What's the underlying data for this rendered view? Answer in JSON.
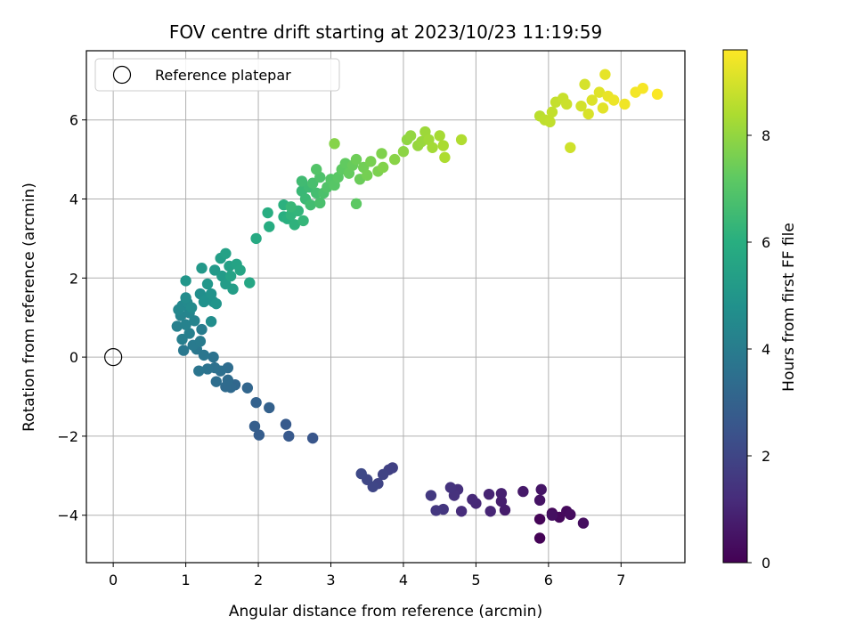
{
  "chart_data": {
    "type": "scatter",
    "title": "FOV centre drift starting at 2023/10/23 11:19:59",
    "xlabel": "Angular distance from reference (arcmin)",
    "ylabel": "Rotation from reference (arcmin)",
    "xlim": [
      -0.37,
      7.88
    ],
    "ylim": [
      -5.2,
      7.75
    ],
    "x_ticks": [
      "0",
      "1",
      "2",
      "3",
      "4",
      "5",
      "6",
      "7"
    ],
    "y_ticks": [
      "−4",
      "−2",
      "0",
      "2",
      "4",
      "6"
    ],
    "grid": true,
    "colormap": "viridis",
    "colorbar": {
      "label": "Hours from first FF file",
      "range": [
        0,
        9.6
      ],
      "ticks": [
        "0",
        "2",
        "4",
        "6",
        "8"
      ]
    },
    "legend": {
      "position": "upper-left",
      "entries": [
        {
          "label": "Reference platepar",
          "marker": "hollow-circle",
          "color": "#000000"
        }
      ]
    },
    "reference_point": {
      "x": 0,
      "y": 0
    },
    "points": [
      {
        "x": 5.88,
        "y": -4.58,
        "t": 0.05
      },
      {
        "x": 5.88,
        "y": -4.1,
        "t": 0.1
      },
      {
        "x": 6.05,
        "y": -3.95,
        "t": 0.15
      },
      {
        "x": 6.15,
        "y": -4.05,
        "t": 0.2
      },
      {
        "x": 6.25,
        "y": -3.9,
        "t": 0.25
      },
      {
        "x": 6.3,
        "y": -3.98,
        "t": 0.3
      },
      {
        "x": 6.48,
        "y": -4.2,
        "t": 0.35
      },
      {
        "x": 6.05,
        "y": -4.0,
        "t": 0.4
      },
      {
        "x": 5.88,
        "y": -3.62,
        "t": 0.5
      },
      {
        "x": 5.9,
        "y": -3.35,
        "t": 0.55
      },
      {
        "x": 5.65,
        "y": -3.4,
        "t": 0.65
      },
      {
        "x": 5.4,
        "y": -3.87,
        "t": 0.75
      },
      {
        "x": 5.35,
        "y": -3.65,
        "t": 0.8
      },
      {
        "x": 5.35,
        "y": -3.45,
        "t": 0.85
      },
      {
        "x": 5.18,
        "y": -3.47,
        "t": 0.95
      },
      {
        "x": 5.2,
        "y": -3.9,
        "t": 1.0
      },
      {
        "x": 5.0,
        "y": -3.7,
        "t": 1.05
      },
      {
        "x": 4.95,
        "y": -3.6,
        "t": 1.1
      },
      {
        "x": 4.8,
        "y": -3.9,
        "t": 1.2
      },
      {
        "x": 4.75,
        "y": -3.35,
        "t": 1.3
      },
      {
        "x": 4.7,
        "y": -3.5,
        "t": 1.35
      },
      {
        "x": 4.65,
        "y": -3.3,
        "t": 1.4
      },
      {
        "x": 4.55,
        "y": -3.85,
        "t": 1.5
      },
      {
        "x": 4.45,
        "y": -3.88,
        "t": 1.55
      },
      {
        "x": 4.38,
        "y": -3.5,
        "t": 1.6
      },
      {
        "x": 3.85,
        "y": -2.8,
        "t": 1.8
      },
      {
        "x": 3.8,
        "y": -2.85,
        "t": 1.85
      },
      {
        "x": 3.72,
        "y": -2.97,
        "t": 1.9
      },
      {
        "x": 3.65,
        "y": -3.2,
        "t": 1.95
      },
      {
        "x": 3.58,
        "y": -3.28,
        "t": 2.0
      },
      {
        "x": 3.5,
        "y": -3.1,
        "t": 2.05
      },
      {
        "x": 3.42,
        "y": -2.95,
        "t": 2.1
      },
      {
        "x": 2.75,
        "y": -2.05,
        "t": 2.55
      },
      {
        "x": 2.42,
        "y": -2.0,
        "t": 2.65
      },
      {
        "x": 2.38,
        "y": -1.7,
        "t": 2.7
      },
      {
        "x": 2.01,
        "y": -1.97,
        "t": 2.8
      },
      {
        "x": 1.95,
        "y": -1.75,
        "t": 2.85
      },
      {
        "x": 2.15,
        "y": -1.28,
        "t": 2.95
      },
      {
        "x": 1.97,
        "y": -1.15,
        "t": 3.0
      },
      {
        "x": 1.85,
        "y": -0.78,
        "t": 3.15
      },
      {
        "x": 1.68,
        "y": -0.7,
        "t": 3.2
      },
      {
        "x": 1.62,
        "y": -0.77,
        "t": 3.25
      },
      {
        "x": 1.55,
        "y": -0.75,
        "t": 3.3
      },
      {
        "x": 1.58,
        "y": -0.58,
        "t": 3.35
      },
      {
        "x": 1.58,
        "y": -0.27,
        "t": 3.4
      },
      {
        "x": 1.42,
        "y": -0.62,
        "t": 3.45
      },
      {
        "x": 1.48,
        "y": -0.35,
        "t": 3.5
      },
      {
        "x": 1.4,
        "y": -0.27,
        "t": 3.55
      },
      {
        "x": 1.38,
        "y": 0.0,
        "t": 3.6
      },
      {
        "x": 1.3,
        "y": -0.3,
        "t": 3.65
      },
      {
        "x": 1.18,
        "y": -0.35,
        "t": 3.7
      },
      {
        "x": 1.25,
        "y": 0.05,
        "t": 3.75
      },
      {
        "x": 1.15,
        "y": 0.2,
        "t": 3.8
      },
      {
        "x": 0.97,
        "y": 0.17,
        "t": 3.85
      },
      {
        "x": 1.1,
        "y": 0.3,
        "t": 3.9
      },
      {
        "x": 1.2,
        "y": 0.4,
        "t": 3.95
      },
      {
        "x": 1.22,
        "y": 0.7,
        "t": 4.0
      },
      {
        "x": 0.95,
        "y": 0.45,
        "t": 4.05
      },
      {
        "x": 1.05,
        "y": 0.6,
        "t": 4.1
      },
      {
        "x": 0.88,
        "y": 0.78,
        "t": 4.15
      },
      {
        "x": 1.0,
        "y": 0.82,
        "t": 4.2
      },
      {
        "x": 1.12,
        "y": 0.92,
        "t": 4.25
      },
      {
        "x": 0.93,
        "y": 1.05,
        "t": 4.3
      },
      {
        "x": 1.05,
        "y": 1.12,
        "t": 4.35
      },
      {
        "x": 0.9,
        "y": 1.2,
        "t": 4.4
      },
      {
        "x": 0.95,
        "y": 1.3,
        "t": 4.45
      },
      {
        "x": 1.02,
        "y": 1.38,
        "t": 4.5
      },
      {
        "x": 1.08,
        "y": 1.25,
        "t": 4.55
      },
      {
        "x": 1.0,
        "y": 1.5,
        "t": 4.6
      },
      {
        "x": 1.35,
        "y": 0.9,
        "t": 4.65
      },
      {
        "x": 1.2,
        "y": 1.6,
        "t": 4.7
      },
      {
        "x": 1.3,
        "y": 1.5,
        "t": 4.75
      },
      {
        "x": 1.25,
        "y": 1.4,
        "t": 4.8
      },
      {
        "x": 1.38,
        "y": 1.4,
        "t": 4.85
      },
      {
        "x": 1.35,
        "y": 1.6,
        "t": 4.9
      },
      {
        "x": 1.42,
        "y": 1.35,
        "t": 4.95
      },
      {
        "x": 1.0,
        "y": 1.93,
        "t": 5.0
      },
      {
        "x": 1.3,
        "y": 1.85,
        "t": 5.05
      },
      {
        "x": 1.22,
        "y": 2.25,
        "t": 5.1
      },
      {
        "x": 1.4,
        "y": 2.2,
        "t": 5.15
      },
      {
        "x": 1.5,
        "y": 2.05,
        "t": 5.2
      },
      {
        "x": 1.55,
        "y": 1.85,
        "t": 5.25
      },
      {
        "x": 1.65,
        "y": 1.72,
        "t": 5.3
      },
      {
        "x": 1.48,
        "y": 2.5,
        "t": 5.35
      },
      {
        "x": 1.6,
        "y": 2.3,
        "t": 5.4
      },
      {
        "x": 1.55,
        "y": 2.62,
        "t": 5.45
      },
      {
        "x": 1.62,
        "y": 2.05,
        "t": 5.5
      },
      {
        "x": 1.7,
        "y": 2.35,
        "t": 5.55
      },
      {
        "x": 1.75,
        "y": 2.2,
        "t": 5.6
      },
      {
        "x": 1.88,
        "y": 1.88,
        "t": 5.65
      },
      {
        "x": 1.97,
        "y": 3.0,
        "t": 5.8
      },
      {
        "x": 2.15,
        "y": 3.3,
        "t": 5.9
      },
      {
        "x": 2.13,
        "y": 3.65,
        "t": 5.95
      },
      {
        "x": 2.35,
        "y": 3.55,
        "t": 6.0
      },
      {
        "x": 2.4,
        "y": 3.5,
        "t": 6.05
      },
      {
        "x": 2.35,
        "y": 3.85,
        "t": 6.1
      },
      {
        "x": 2.5,
        "y": 3.35,
        "t": 6.15
      },
      {
        "x": 2.45,
        "y": 3.6,
        "t": 6.2
      },
      {
        "x": 2.55,
        "y": 3.7,
        "t": 6.25
      },
      {
        "x": 2.62,
        "y": 3.45,
        "t": 6.3
      },
      {
        "x": 2.45,
        "y": 3.8,
        "t": 6.35
      },
      {
        "x": 2.6,
        "y": 4.2,
        "t": 6.4
      },
      {
        "x": 2.65,
        "y": 4.0,
        "t": 6.45
      },
      {
        "x": 2.7,
        "y": 4.3,
        "t": 6.5
      },
      {
        "x": 2.6,
        "y": 4.45,
        "t": 6.55
      },
      {
        "x": 2.72,
        "y": 3.85,
        "t": 6.6
      },
      {
        "x": 2.8,
        "y": 4.15,
        "t": 6.65
      },
      {
        "x": 2.75,
        "y": 4.4,
        "t": 6.7
      },
      {
        "x": 2.85,
        "y": 3.9,
        "t": 6.75
      },
      {
        "x": 2.9,
        "y": 4.15,
        "t": 6.8
      },
      {
        "x": 2.85,
        "y": 4.55,
        "t": 6.85
      },
      {
        "x": 2.95,
        "y": 4.3,
        "t": 6.9
      },
      {
        "x": 2.8,
        "y": 4.75,
        "t": 6.95
      },
      {
        "x": 3.0,
        "y": 4.5,
        "t": 7.0
      },
      {
        "x": 3.05,
        "y": 4.35,
        "t": 7.05
      },
      {
        "x": 3.1,
        "y": 4.55,
        "t": 7.1
      },
      {
        "x": 3.35,
        "y": 3.88,
        "t": 7.15
      },
      {
        "x": 3.15,
        "y": 4.75,
        "t": 7.2
      },
      {
        "x": 3.2,
        "y": 4.9,
        "t": 7.25
      },
      {
        "x": 3.25,
        "y": 4.65,
        "t": 7.3
      },
      {
        "x": 3.3,
        "y": 4.85,
        "t": 7.35
      },
      {
        "x": 3.4,
        "y": 4.5,
        "t": 7.4
      },
      {
        "x": 3.35,
        "y": 5.0,
        "t": 7.45
      },
      {
        "x": 3.45,
        "y": 4.8,
        "t": 7.5
      },
      {
        "x": 3.5,
        "y": 4.6,
        "t": 7.55
      },
      {
        "x": 3.55,
        "y": 4.95,
        "t": 7.6
      },
      {
        "x": 3.65,
        "y": 4.7,
        "t": 7.65
      },
      {
        "x": 3.7,
        "y": 5.15,
        "t": 7.7
      },
      {
        "x": 3.72,
        "y": 4.8,
        "t": 7.75
      },
      {
        "x": 3.05,
        "y": 5.4,
        "t": 7.8
      },
      {
        "x": 3.88,
        "y": 5.0,
        "t": 7.85
      },
      {
        "x": 4.0,
        "y": 5.2,
        "t": 7.9
      },
      {
        "x": 4.05,
        "y": 5.5,
        "t": 7.95
      },
      {
        "x": 4.1,
        "y": 5.6,
        "t": 8.0
      },
      {
        "x": 4.2,
        "y": 5.35,
        "t": 8.05
      },
      {
        "x": 4.25,
        "y": 5.45,
        "t": 8.1
      },
      {
        "x": 4.3,
        "y": 5.7,
        "t": 8.15
      },
      {
        "x": 4.35,
        "y": 5.5,
        "t": 8.2
      },
      {
        "x": 4.4,
        "y": 5.3,
        "t": 8.25
      },
      {
        "x": 4.5,
        "y": 5.6,
        "t": 8.3
      },
      {
        "x": 4.55,
        "y": 5.35,
        "t": 8.35
      },
      {
        "x": 4.57,
        "y": 5.05,
        "t": 8.4
      },
      {
        "x": 4.8,
        "y": 5.5,
        "t": 8.45
      },
      {
        "x": 5.88,
        "y": 6.1,
        "t": 8.6
      },
      {
        "x": 5.95,
        "y": 6.0,
        "t": 8.65
      },
      {
        "x": 6.02,
        "y": 5.95,
        "t": 8.7
      },
      {
        "x": 6.05,
        "y": 6.2,
        "t": 8.72
      },
      {
        "x": 6.1,
        "y": 6.45,
        "t": 8.75
      },
      {
        "x": 6.2,
        "y": 6.55,
        "t": 8.8
      },
      {
        "x": 6.25,
        "y": 6.4,
        "t": 8.85
      },
      {
        "x": 6.3,
        "y": 5.3,
        "t": 8.9
      },
      {
        "x": 6.45,
        "y": 6.35,
        "t": 8.95
      },
      {
        "x": 6.5,
        "y": 6.9,
        "t": 9.0
      },
      {
        "x": 6.55,
        "y": 6.15,
        "t": 9.05
      },
      {
        "x": 6.6,
        "y": 6.5,
        "t": 9.1
      },
      {
        "x": 6.7,
        "y": 6.7,
        "t": 9.15
      },
      {
        "x": 6.75,
        "y": 6.3,
        "t": 9.2
      },
      {
        "x": 6.78,
        "y": 7.15,
        "t": 9.25
      },
      {
        "x": 6.82,
        "y": 6.6,
        "t": 9.3
      },
      {
        "x": 6.9,
        "y": 6.5,
        "t": 9.35
      },
      {
        "x": 7.05,
        "y": 6.4,
        "t": 9.4
      },
      {
        "x": 7.2,
        "y": 6.7,
        "t": 9.45
      },
      {
        "x": 7.3,
        "y": 6.8,
        "t": 9.5
      },
      {
        "x": 7.5,
        "y": 6.65,
        "t": 9.55
      }
    ]
  }
}
